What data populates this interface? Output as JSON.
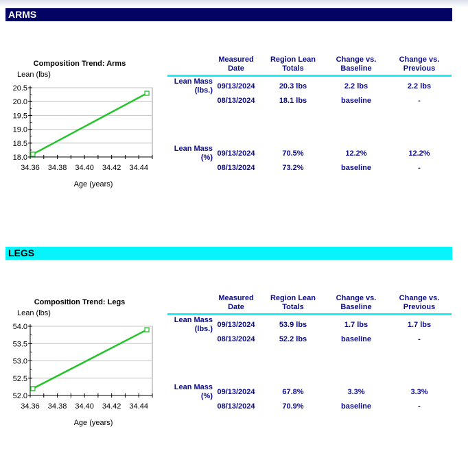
{
  "table_headers": [
    "Measured Date",
    "Region Lean Totals",
    "Change vs. Baseline",
    "Change vs. Previous"
  ],
  "sections": [
    {
      "name": "ARMS",
      "band_color": "#030363",
      "chart_title": "Composition Trend: Arms",
      "rows": [
        {
          "label": "Lean Mass (lbs.)",
          "date": "09/13/2024",
          "total": "20.3 lbs",
          "vs_baseline": "2.2 lbs",
          "vs_previous": "2.2 lbs"
        },
        {
          "label": "",
          "date": "08/13/2024",
          "total": "18.1 lbs",
          "vs_baseline": "baseline",
          "vs_previous": "-"
        },
        {
          "label": "Lean Mass (%)",
          "date": "09/13/2024",
          "total": "70.5%",
          "vs_baseline": "12.2%",
          "vs_previous": "12.2%"
        },
        {
          "label": "",
          "date": "08/13/2024",
          "total": "73.2%",
          "vs_baseline": "baseline",
          "vs_previous": "-"
        }
      ]
    },
    {
      "name": "LEGS",
      "band_color": "#08f4fb",
      "chart_title": "Composition Trend: Legs",
      "rows": [
        {
          "label": "Lean Mass (lbs.)",
          "date": "09/13/2024",
          "total": "53.9 lbs",
          "vs_baseline": "1.7 lbs",
          "vs_previous": "1.7 lbs"
        },
        {
          "label": "",
          "date": "08/13/2024",
          "total": "52.2 lbs",
          "vs_baseline": "baseline",
          "vs_previous": "-"
        },
        {
          "label": "Lean Mass (%)",
          "date": "09/13/2024",
          "total": "67.8%",
          "vs_baseline": "3.3%",
          "vs_previous": "3.3%"
        },
        {
          "label": "",
          "date": "08/13/2024",
          "total": "70.9%",
          "vs_baseline": "baseline",
          "vs_previous": "-"
        }
      ]
    }
  ],
  "chart_data": [
    {
      "type": "line",
      "title": "Composition Trend: Arms",
      "xlabel": "Age (years)",
      "ylabel": "Lean (lbs)",
      "x": [
        34.362,
        34.446
      ],
      "series": [
        {
          "values": [
            18.1,
            20.3
          ],
          "color": "#22c42a"
        }
      ],
      "xlim": [
        34.36,
        34.45
      ],
      "ylim": [
        18.0,
        20.5
      ],
      "xticks": [
        "34.36",
        "34.38",
        "34.40",
        "34.42",
        "34.44"
      ],
      "yticks": [
        "18.0",
        "18.5",
        "19.0",
        "19.5",
        "20.0",
        "20.5"
      ],
      "grid": true
    },
    {
      "type": "line",
      "title": "Composition Trend: Legs",
      "xlabel": "Age (years)",
      "ylabel": "Lean (lbs)",
      "x": [
        34.362,
        34.446
      ],
      "series": [
        {
          "values": [
            52.2,
            53.9
          ],
          "color": "#22c42a"
        }
      ],
      "xlim": [
        34.36,
        34.45
      ],
      "ylim": [
        52.0,
        54.0
      ],
      "xticks": [
        "34.36",
        "34.38",
        "34.40",
        "34.42",
        "34.44"
      ],
      "yticks": [
        "52.0",
        "52.5",
        "53.0",
        "53.5",
        "54.0"
      ],
      "grid": true
    }
  ]
}
